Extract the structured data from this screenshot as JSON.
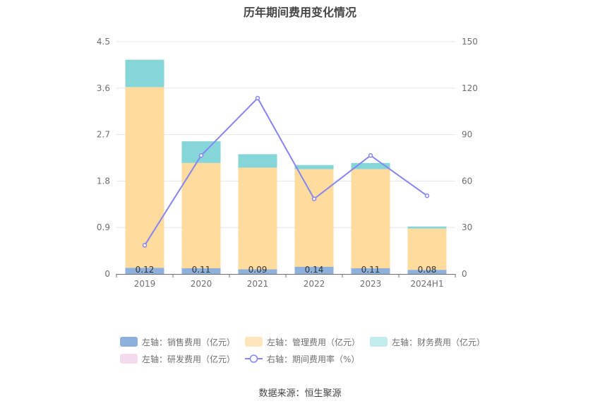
{
  "chart_data": {
    "type": "bar",
    "title": "历年期间费用变化情况",
    "categories": [
      "2019",
      "2020",
      "2021",
      "2022",
      "2023",
      "2024H1"
    ],
    "left_axis": {
      "min": 0,
      "max": 4.5,
      "ticks": [
        "0",
        "0.9",
        "1.8",
        "2.7",
        "3.6",
        "4.5"
      ]
    },
    "right_axis": {
      "min": 0,
      "max": 150,
      "ticks": [
        "0",
        "30",
        "60",
        "90",
        "120",
        "150"
      ]
    },
    "stacked_series": [
      {
        "name": "左轴：销售费用（亿元）",
        "color": "#8eb0dc",
        "values": [
          0.12,
          0.11,
          0.09,
          0.14,
          0.11,
          0.08
        ],
        "labels": [
          "0.12",
          "0.11",
          "0.09",
          "0.14",
          "0.11",
          "0.08"
        ]
      },
      {
        "name": "左轴：管理费用（亿元）",
        "color": "#ffdb9e",
        "values": [
          3.5,
          2.04,
          1.97,
          1.89,
          1.92,
          0.8
        ]
      },
      {
        "name": "左轴：财务费用（亿元）",
        "color": "#86d6d9",
        "values": [
          0.53,
          0.42,
          0.26,
          0.08,
          0.12,
          0.04
        ]
      },
      {
        "name": "左轴：研发费用（亿元）",
        "color": "#f2dcee",
        "values": [
          0,
          0,
          0,
          0,
          0,
          0
        ]
      }
    ],
    "line_series": {
      "name": "右轴：期间费用率（%）",
      "color": "#8585f2",
      "values": [
        18.5,
        76.5,
        113.5,
        48.5,
        76.5,
        50.5
      ]
    },
    "legend_placement": "bottom",
    "grid": true
  },
  "legend": {
    "sales": "左轴：销售费用（亿元）",
    "admin": "左轴：管理费用（亿元）",
    "finance": "左轴：财务费用（亿元）",
    "rd": "左轴：研发费用（亿元）",
    "rate": "右轴：期间费用率（%）"
  },
  "source": "数据来源：恒生聚源"
}
